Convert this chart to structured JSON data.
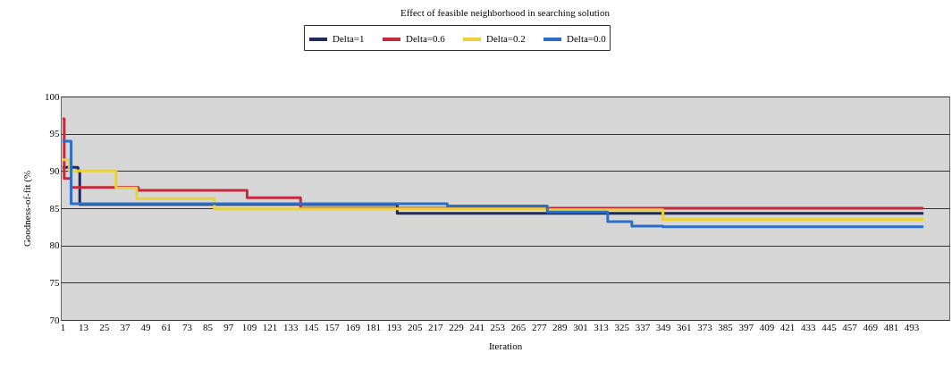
{
  "chart_data": {
    "type": "step",
    "title": "Effect of feasible neighborhood in searching solution",
    "xlabel": "Iteration",
    "ylabel": "Goodness-of-fit (%",
    "xlim": [
      0,
      515
    ],
    "xticks": [
      1,
      13,
      25,
      37,
      49,
      61,
      73,
      85,
      97,
      109,
      121,
      133,
      145,
      157,
      169,
      181,
      193,
      205,
      217,
      229,
      241,
      253,
      265,
      277,
      289,
      301,
      313,
      325,
      337,
      349,
      361,
      373,
      385,
      397,
      409,
      421,
      433,
      445,
      457,
      469,
      481,
      493
    ],
    "ylim": [
      70,
      100
    ],
    "yticks": [
      70,
      75,
      80,
      85,
      90,
      95,
      100
    ],
    "grid": "y",
    "legend": "top",
    "line_style": "solid",
    "series": [
      {
        "name": "Delta=1",
        "color": "#1f2a5c",
        "x": [
          1,
          10,
          11,
          195,
          500
        ],
        "values": [
          90.5,
          90,
          85.5,
          84.3,
          84.3
        ]
      },
      {
        "name": "Delta=0.6",
        "color": "#c8283c",
        "x": [
          1,
          2,
          6,
          45,
          108,
          139,
          500
        ],
        "values": [
          97,
          89,
          87.8,
          87.4,
          86.4,
          85,
          85
        ]
      },
      {
        "name": "Delta=0.2",
        "color": "#e6d23c",
        "x": [
          1,
          5,
          32,
          44,
          89,
          282,
          349,
          500
        ],
        "values": [
          91.5,
          90,
          87.7,
          86.3,
          84.9,
          84.8,
          83.5,
          83.5
        ]
      },
      {
        "name": "Delta=0.0",
        "color": "#2a6ec8",
        "x": [
          1,
          6,
          224,
          282,
          317,
          331,
          349,
          500
        ],
        "values": [
          94,
          85.6,
          85.3,
          84.5,
          83.2,
          82.6,
          82.5,
          82.5
        ]
      }
    ]
  }
}
